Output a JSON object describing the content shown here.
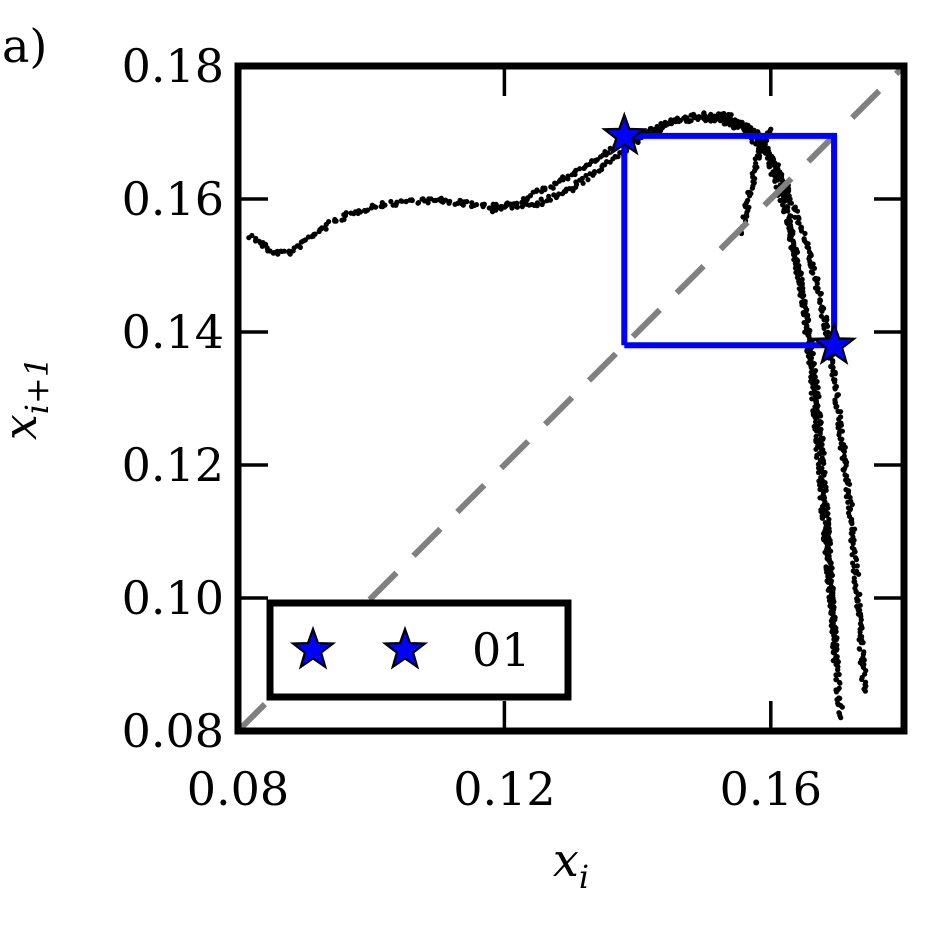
{
  "panel_label": "a)",
  "chart_data": {
    "type": "scatter",
    "title": "",
    "xlabel": "x_i",
    "ylabel": "x_{i+1}",
    "xlabel_parts": {
      "base": "x",
      "sub": "i"
    },
    "ylabel_parts": {
      "base": "x",
      "sub": "i+1"
    },
    "xlim": [
      0.08,
      0.18
    ],
    "ylim": [
      0.08,
      0.18
    ],
    "x_ticks": [
      0.08,
      0.12,
      0.16
    ],
    "x_tick_labels": [
      "0.08",
      "0.12",
      "0.16"
    ],
    "y_ticks": [
      0.08,
      0.1,
      0.12,
      0.14,
      0.16,
      0.18
    ],
    "y_tick_labels": [
      "0.08",
      "0.10",
      "0.12",
      "0.14",
      "0.16",
      "0.18"
    ],
    "grid": false,
    "legend_position": "lower-left",
    "legend": {
      "marker": "star",
      "label": "01"
    },
    "colors": {
      "points": "#000000",
      "orbit": "#0000ff",
      "diagonal": "#808080",
      "star_fill": "#0000ff"
    },
    "series": [
      {
        "kind": "return-map-points",
        "strands": [
          {
            "points": [
              [
                0.082,
                0.1545
              ],
              [
                0.085,
                0.152
              ],
              [
                0.088,
                0.152
              ],
              [
                0.091,
                0.1545
              ],
              [
                0.095,
                0.157
              ],
              [
                0.1,
                0.1588
              ],
              [
                0.105,
                0.1597
              ],
              [
                0.11,
                0.1598
              ],
              [
                0.115,
                0.1592
              ],
              [
                0.12,
                0.1588
              ],
              [
                0.125,
                0.1594
              ],
              [
                0.13,
                0.1615
              ],
              [
                0.135,
                0.165
              ],
              [
                0.14,
                0.169
              ],
              [
                0.145,
                0.1715
              ],
              [
                0.15,
                0.1728
              ],
              [
                0.154,
                0.1725
              ],
              [
                0.158,
                0.17
              ],
              [
                0.161,
                0.164
              ],
              [
                0.163,
                0.156
              ],
              [
                0.165,
                0.144
              ],
              [
                0.1665,
                0.13
              ],
              [
                0.168,
                0.112
              ],
              [
                0.1695,
                0.095
              ],
              [
                0.1705,
                0.082
              ]
            ]
          },
          {
            "points": [
              [
                0.118,
                0.1583
              ],
              [
                0.122,
                0.1595
              ],
              [
                0.127,
                0.162
              ],
              [
                0.132,
                0.1648
              ],
              [
                0.137,
                0.168
              ],
              [
                0.142,
                0.1705
              ],
              [
                0.147,
                0.172
              ],
              [
                0.152,
                0.172
              ],
              [
                0.156,
                0.1705
              ],
              [
                0.1595,
                0.1665
              ],
              [
                0.162,
                0.159
              ],
              [
                0.164,
                0.15
              ],
              [
                0.166,
                0.138
              ],
              [
                0.1675,
                0.125
              ],
              [
                0.1685,
                0.11
              ],
              [
                0.1693,
                0.097
              ],
              [
                0.1698,
                0.09
              ]
            ]
          },
          {
            "points": [
              [
                0.15,
                0.1725
              ],
              [
                0.154,
                0.172
              ],
              [
                0.158,
                0.1695
              ],
              [
                0.1615,
                0.164
              ],
              [
                0.1645,
                0.156
              ],
              [
                0.167,
                0.147
              ],
              [
                0.169,
                0.137
              ],
              [
                0.1705,
                0.125
              ],
              [
                0.172,
                0.113
              ],
              [
                0.173,
                0.101
              ],
              [
                0.1738,
                0.09
              ],
              [
                0.1742,
                0.086
              ]
            ]
          },
          {
            "points": [
              [
                0.1555,
                0.1545
              ],
              [
                0.157,
                0.162
              ],
              [
                0.1585,
                0.168
              ],
              [
                0.16,
                0.1705
              ]
            ]
          }
        ]
      },
      {
        "kind": "period-2-orbit",
        "points": [
          [
            0.138,
            0.138
          ],
          [
            0.138,
            0.1695
          ],
          [
            0.1695,
            0.1695
          ],
          [
            0.1695,
            0.138
          ],
          [
            0.138,
            0.138
          ]
        ]
      },
      {
        "kind": "diagonal",
        "points": [
          [
            0.08,
            0.08
          ],
          [
            0.18,
            0.18
          ]
        ]
      },
      {
        "kind": "star-markers",
        "points": [
          [
            0.138,
            0.1695
          ],
          [
            0.1695,
            0.138
          ]
        ]
      }
    ]
  }
}
